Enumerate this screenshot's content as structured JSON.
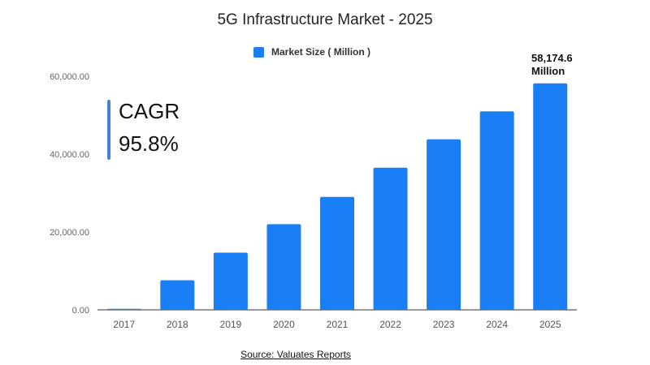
{
  "chart_data": {
    "type": "bar",
    "title": "5G Infrastructure Market - 2025",
    "xlabel": "",
    "ylabel": "",
    "categories": [
      "2017",
      "2018",
      "2019",
      "2020",
      "2021",
      "2022",
      "2023",
      "2024",
      "2025"
    ],
    "series": [
      {
        "name": "Market Size ( Million )",
        "values": [
          250,
          7600,
          14700,
          22000,
          29000,
          36500,
          43800,
          51000,
          58174.6
        ],
        "color": "#1a7ef5"
      }
    ],
    "yticks": [
      "0.00",
      "20,000.00",
      "40,000.00",
      "60,000.00"
    ],
    "ytick_values": [
      0,
      20000,
      40000,
      60000
    ],
    "ylim": [
      0,
      60000
    ],
    "grid": false,
    "legend": "top-center",
    "annotation": {
      "value": "58,174.6",
      "unit": "Million"
    },
    "cagr": {
      "label": "CAGR",
      "value": "95.8%",
      "color": "#4a7fd6"
    },
    "source": "Source: Valuates Reports"
  }
}
